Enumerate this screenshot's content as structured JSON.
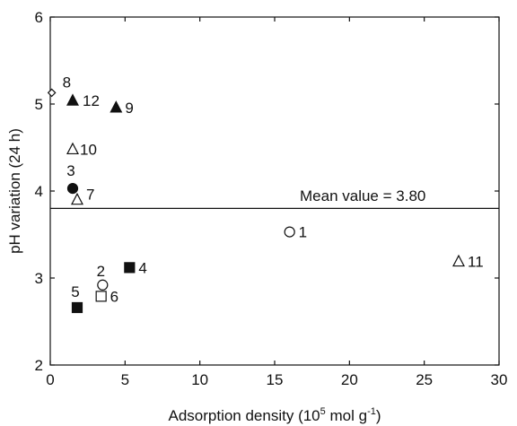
{
  "chart_data": {
    "type": "scatter",
    "title": "",
    "xlabel": "Adsorption density (10",
    "xlabel_sup1": "5",
    "xlabel_unit": " mol g",
    "xlabel_sup2": "-1",
    "xlabel_close": ")",
    "ylabel": "pH variation (24 h)",
    "xlim": [
      0,
      30
    ],
    "ylim": [
      2,
      6
    ],
    "x_ticks": [
      "0",
      "5",
      "10",
      "15",
      "20",
      "25",
      "30"
    ],
    "y_ticks": [
      "2",
      "3",
      "4",
      "5",
      "6"
    ],
    "grid": false,
    "reference_line": {
      "y": 3.8,
      "label": "Mean value = 3.80"
    },
    "points": [
      {
        "label": "1",
        "x": 16.0,
        "y": 3.53,
        "marker": "circle-open"
      },
      {
        "label": "2",
        "x": 3.5,
        "y": 2.92,
        "marker": "circle-open"
      },
      {
        "label": "3",
        "x": 1.5,
        "y": 4.03,
        "marker": "circle-filled"
      },
      {
        "label": "4",
        "x": 5.3,
        "y": 3.12,
        "marker": "square-filled"
      },
      {
        "label": "5",
        "x": 1.8,
        "y": 2.66,
        "marker": "square-filled"
      },
      {
        "label": "6",
        "x": 3.4,
        "y": 2.79,
        "marker": "square-open"
      },
      {
        "label": "7",
        "x": 1.8,
        "y": 3.9,
        "marker": "triangle-open"
      },
      {
        "label": "8",
        "x": 0.1,
        "y": 5.13,
        "marker": "diamond-open"
      },
      {
        "label": "9",
        "x": 4.4,
        "y": 4.96,
        "marker": "triangle-filled"
      },
      {
        "label": "10",
        "x": 1.5,
        "y": 4.48,
        "marker": "triangle-open"
      },
      {
        "label": "11",
        "x": 27.3,
        "y": 3.19,
        "marker": "triangle-open"
      },
      {
        "label": "12",
        "x": 1.5,
        "y": 5.04,
        "marker": "triangle-filled"
      }
    ]
  }
}
